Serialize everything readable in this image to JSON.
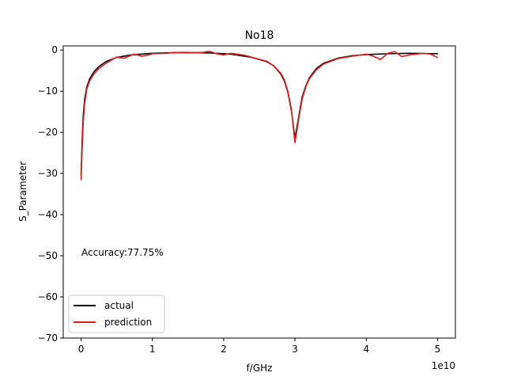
{
  "chart_data": {
    "type": "line",
    "title": "No18",
    "xlabel": "f/GHz",
    "ylabel": "S_Parameter",
    "x_offset_label": "1e10",
    "xlim": [
      -2500000000.0,
      52500000000.0
    ],
    "ylim": [
      -70,
      1
    ],
    "x_ticks": [
      0,
      10000000000.0,
      20000000000.0,
      30000000000.0,
      40000000000.0,
      50000000000.0
    ],
    "x_tick_labels": [
      "0",
      "1",
      "2",
      "3",
      "4",
      "5"
    ],
    "y_ticks": [
      0,
      -10,
      -20,
      -30,
      -40,
      -50,
      -60,
      -70
    ],
    "y_tick_labels": [
      "0",
      "−10",
      "−20",
      "−30",
      "−40",
      "−50",
      "−60",
      "−70"
    ],
    "annotation": "Accuracy:77.75%",
    "legend_position": "lower-left",
    "grid": false,
    "series": [
      {
        "name": "actual",
        "color": "#000000",
        "x": [
          0,
          150000000.0,
          300000000.0,
          500000000.0,
          800000000.0,
          1200000000.0,
          1800000000.0,
          2500000000.0,
          3500000000.0,
          5000000000.0,
          7000000000.0,
          10000000000.0,
          14000000000.0,
          18000000000.0,
          21000000000.0,
          24000000000.0,
          26000000000.0,
          27000000000.0,
          28000000000.0,
          28500000000.0,
          29000000000.0,
          29500000000.0,
          30000000000.0,
          30500000000.0,
          31000000000.0,
          31500000000.0,
          32000000000.0,
          33000000000.0,
          34000000000.0,
          36000000000.0,
          38000000000.0,
          40000000000.0,
          43000000000.0,
          46000000000.0,
          50000000000.0
        ],
        "y": [
          -30.5,
          -22,
          -16,
          -12,
          -9,
          -7,
          -5.3,
          -4,
          -2.8,
          -1.8,
          -1.2,
          -0.8,
          -0.6,
          -0.7,
          -1.0,
          -1.8,
          -2.8,
          -3.8,
          -5.8,
          -7.5,
          -10.2,
          -14.8,
          -21.5,
          -16.5,
          -11.5,
          -8.8,
          -6.8,
          -4.5,
          -3.2,
          -2.0,
          -1.4,
          -1.1,
          -0.9,
          -0.8,
          -0.9
        ]
      },
      {
        "name": "prediction",
        "color": "#e31a1c",
        "x": [
          0,
          150000000.0,
          300000000.0,
          500000000.0,
          800000000.0,
          1200000000.0,
          1800000000.0,
          2500000000.0,
          3500000000.0,
          4500000000.0,
          5000000000.0,
          6000000000.0,
          7000000000.0,
          7500000000.0,
          8500000000.0,
          9500000000.0,
          10000000000.0,
          12000000000.0,
          13000000000.0,
          15000000000.0,
          17000000000.0,
          18000000000.0,
          19000000000.0,
          20000000000.0,
          21000000000.0,
          23000000000.0,
          24000000000.0,
          26000000000.0,
          27000000000.0,
          28000000000.0,
          28500000000.0,
          29000000000.0,
          29500000000.0,
          30000000000.0,
          30500000000.0,
          31000000000.0,
          31500000000.0,
          32000000000.0,
          33000000000.0,
          34000000000.0,
          36000000000.0,
          38000000000.0,
          40000000000.0,
          41000000000.0,
          42000000000.0,
          43000000000.0,
          44000000000.0,
          45000000000.0,
          46000000000.0,
          48000000000.0,
          49000000000.0,
          50000000000.0
        ],
        "y": [
          -31.5,
          -24,
          -17.5,
          -13,
          -9.5,
          -7.5,
          -5.8,
          -4.5,
          -3.2,
          -2.2,
          -1.7,
          -2.0,
          -1.3,
          -1.0,
          -1.5,
          -1.2,
          -0.9,
          -0.8,
          -0.6,
          -0.7,
          -0.6,
          -0.3,
          -0.9,
          -1.2,
          -0.8,
          -1.3,
          -1.8,
          -2.7,
          -3.8,
          -5.6,
          -7.2,
          -10.0,
          -14.5,
          -22.5,
          -17.0,
          -12.0,
          -9.0,
          -7.0,
          -4.8,
          -3.4,
          -2.1,
          -1.5,
          -1.0,
          -1.5,
          -2.3,
          -0.8,
          -0.4,
          -1.6,
          -1.2,
          -0.8,
          -1.0,
          -1.8
        ]
      }
    ]
  }
}
